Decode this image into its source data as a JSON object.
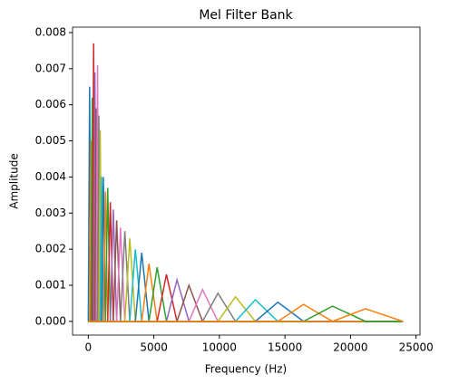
{
  "chart_data": {
    "type": "line",
    "title": "Mel Filter Bank",
    "x_label": "Frequency (Hz)",
    "y_label": "Amplitude",
    "xlim": [
      -1200,
      25300
    ],
    "ylim": [
      -0.00038,
      0.00815
    ],
    "xticks": [
      0,
      5000,
      10000,
      15000,
      20000,
      25000
    ],
    "yticks": [
      {
        "value": 0,
        "label": "0.000"
      },
      {
        "value": 0.001,
        "label": "0.001"
      },
      {
        "value": 0.002,
        "label": "0.002"
      },
      {
        "value": 0.003,
        "label": "0.003"
      },
      {
        "value": 0.004,
        "label": "0.004"
      },
      {
        "value": 0.005,
        "label": "0.005"
      },
      {
        "value": 0.006,
        "label": "0.006"
      },
      {
        "value": 0.007,
        "label": "0.007"
      },
      {
        "value": 0.008,
        "label": "0.008"
      }
    ],
    "series": [
      {
        "color": "#1f77b4",
        "x": [
          0,
          0,
          101,
          202,
          24000
        ],
        "values": [
          0,
          0,
          0.0065,
          0,
          0
        ]
      },
      {
        "color": "#ff7f0e",
        "x": [
          0,
          101,
          202,
          304,
          24000
        ],
        "values": [
          0,
          0,
          0.005,
          0,
          0
        ]
      },
      {
        "color": "#2ca02c",
        "x": [
          0,
          202,
          304,
          405,
          24000
        ],
        "values": [
          0,
          0,
          0.0062,
          0,
          0
        ]
      },
      {
        "color": "#d62728",
        "x": [
          0,
          304,
          405,
          506,
          24000
        ],
        "values": [
          0,
          0,
          0.0077,
          0,
          0
        ]
      },
      {
        "color": "#9467bd",
        "x": [
          0,
          405,
          506,
          607,
          24000
        ],
        "values": [
          0,
          0,
          0.0069,
          0,
          0
        ]
      },
      {
        "color": "#8c564b",
        "x": [
          0,
          506,
          607,
          708,
          24000
        ],
        "values": [
          0,
          0,
          0.0059,
          0,
          0
        ]
      },
      {
        "color": "#e377c2",
        "x": [
          0,
          607,
          708,
          810,
          24000
        ],
        "values": [
          0,
          0,
          0.0071,
          0,
          0
        ]
      },
      {
        "color": "#7f7f7f",
        "x": [
          0,
          708,
          810,
          911,
          24000
        ],
        "values": [
          0,
          0,
          0.0057,
          0,
          0
        ]
      },
      {
        "color": "#bcbd22",
        "x": [
          0,
          810,
          911,
          1012,
          24000
        ],
        "values": [
          0,
          0,
          0.0053,
          0,
          0
        ]
      },
      {
        "color": "#17becf",
        "x": [
          0,
          911,
          1012,
          1149,
          24000
        ],
        "values": [
          0,
          0,
          0.004,
          0,
          0
        ]
      },
      {
        "color": "#1f77b4",
        "x": [
          0,
          1012,
          1149,
          1304,
          24000
        ],
        "values": [
          0,
          0,
          0.004,
          0,
          0
        ]
      },
      {
        "color": "#ff7f0e",
        "x": [
          0,
          1149,
          1304,
          1480,
          24000
        ],
        "values": [
          0,
          0,
          0.0036,
          0,
          0
        ]
      },
      {
        "color": "#2ca02c",
        "x": [
          0,
          1304,
          1480,
          1680,
          24000
        ],
        "values": [
          0,
          0,
          0.0037,
          0,
          0
        ]
      },
      {
        "color": "#d62728",
        "x": [
          0,
          1480,
          1680,
          1907,
          24000
        ],
        "values": [
          0,
          0,
          0.0033,
          0,
          0
        ]
      },
      {
        "color": "#9467bd",
        "x": [
          0,
          1680,
          1907,
          2164,
          24000
        ],
        "values": [
          0,
          0,
          0.0031,
          0,
          0
        ]
      },
      {
        "color": "#8c564b",
        "x": [
          0,
          1907,
          2164,
          2456,
          24000
        ],
        "values": [
          0,
          0,
          0.0028,
          0,
          0
        ]
      },
      {
        "color": "#e377c2",
        "x": [
          0,
          2164,
          2456,
          2788,
          24000
        ],
        "values": [
          0,
          0,
          0.0026,
          0,
          0
        ]
      },
      {
        "color": "#7f7f7f",
        "x": [
          0,
          2456,
          2788,
          3164,
          24000
        ],
        "values": [
          0,
          0,
          0.0025,
          0,
          0
        ]
      },
      {
        "color": "#bcbd22",
        "x": [
          0,
          2788,
          3164,
          3591,
          24000
        ],
        "values": [
          0,
          0,
          0.0023,
          0,
          0
        ]
      },
      {
        "color": "#17becf",
        "x": [
          0,
          3164,
          3591,
          4076,
          24000
        ],
        "values": [
          0,
          0,
          0.002,
          0,
          0
        ]
      },
      {
        "color": "#1f77b4",
        "x": [
          0,
          3591,
          4076,
          4627,
          24000
        ],
        "values": [
          0,
          0,
          0.0019,
          0,
          0
        ]
      },
      {
        "color": "#ff7f0e",
        "x": [
          0,
          4076,
          4627,
          5251,
          24000
        ],
        "values": [
          0,
          0,
          0.0016,
          0,
          0
        ]
      },
      {
        "color": "#2ca02c",
        "x": [
          0,
          4627,
          5251,
          5960,
          24000
        ],
        "values": [
          0,
          0,
          0.0015,
          0,
          0
        ]
      },
      {
        "color": "#d62728",
        "x": [
          0,
          5251,
          5960,
          6765,
          24000
        ],
        "values": [
          0,
          0,
          0.0013,
          0,
          0
        ]
      },
      {
        "color": "#9467bd",
        "x": [
          0,
          5960,
          6765,
          7678,
          24000
        ],
        "values": [
          0,
          0,
          0.00115,
          0,
          0
        ]
      },
      {
        "color": "#8c564b",
        "x": [
          0,
          6765,
          7678,
          8714,
          24000
        ],
        "values": [
          0,
          0,
          0.001,
          0,
          0
        ]
      },
      {
        "color": "#e377c2",
        "x": [
          0,
          7678,
          8714,
          9891,
          24000
        ],
        "values": [
          0,
          0,
          0.00088,
          0,
          0
        ]
      },
      {
        "color": "#7f7f7f",
        "x": [
          0,
          8714,
          9891,
          11226,
          24000
        ],
        "values": [
          0,
          0,
          0.00078,
          0,
          0
        ]
      },
      {
        "color": "#bcbd22",
        "x": [
          0,
          9891,
          11226,
          12742,
          24000
        ],
        "values": [
          0,
          0,
          0.00068,
          0,
          0
        ]
      },
      {
        "color": "#17becf",
        "x": [
          0,
          11226,
          12742,
          14462,
          24000
        ],
        "values": [
          0,
          0,
          0.0006,
          0,
          0
        ]
      },
      {
        "color": "#1f77b4",
        "x": [
          0,
          12742,
          14462,
          16414,
          24000
        ],
        "values": [
          0,
          0,
          0.00053,
          0,
          0
        ]
      },
      {
        "color": "#ff7f0e",
        "x": [
          0,
          14462,
          16414,
          18630,
          24000
        ],
        "values": [
          0,
          0,
          0.00047,
          0,
          0
        ]
      },
      {
        "color": "#2ca02c",
        "x": [
          0,
          16414,
          18630,
          21145,
          24000
        ],
        "values": [
          0,
          0,
          0.00042,
          0,
          0
        ]
      },
      {
        "color": "#ff7f0e",
        "x": [
          0,
          18630,
          21145,
          24000,
          24000
        ],
        "values": [
          0,
          0,
          0.00035,
          0,
          0
        ]
      }
    ]
  }
}
